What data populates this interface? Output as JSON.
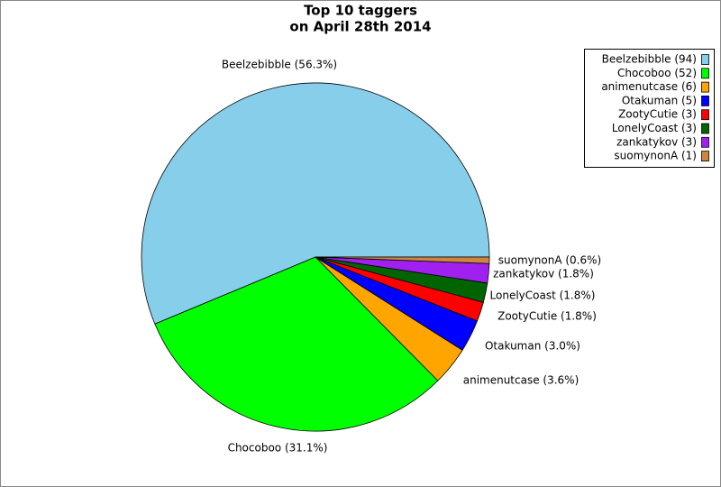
{
  "chart_data": {
    "type": "pie",
    "title": "Top 10 taggers",
    "subtitle": "on April 28th 2014",
    "categories": [
      "Beelzebibble (94)",
      "Chocoboo (52)",
      "animenutcase (6)",
      "Otakuman (5)",
      "ZootyCutie (3)",
      "LonelyCoast (3)",
      "zankatykov (3)",
      "suomynonA (1)"
    ],
    "values": [
      94,
      52,
      6,
      5,
      3,
      3,
      3,
      1
    ],
    "value_labels": [
      "Beelzebibble (56.3%)",
      "Chocoboo (31.1%)",
      "animenutcase (3.6%)",
      "Otakuman (3.0%)",
      "ZootyCutie (1.8%)",
      "LonelyCoast (1.8%)",
      "zankatykov (1.8%)",
      "suomynonA (0.6%)"
    ],
    "colors": [
      "#87ceeb",
      "#00ff00",
      "#ffa500",
      "#0000ff",
      "#ff0000",
      "#006400",
      "#a020f0",
      "#cd853f"
    ],
    "legend": "upper right"
  }
}
